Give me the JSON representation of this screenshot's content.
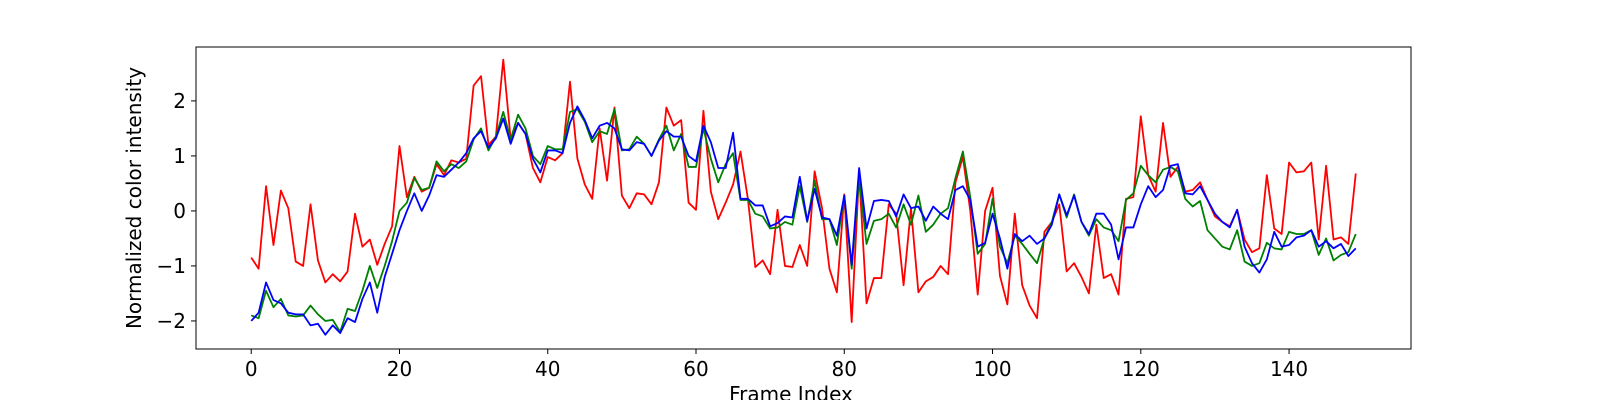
{
  "chart_data": {
    "type": "line",
    "x_label": "Frame Index",
    "y_label": "Normalized color intensity",
    "x": [
      0,
      1,
      2,
      3,
      4,
      5,
      6,
      7,
      8,
      9,
      10,
      11,
      12,
      13,
      14,
      15,
      16,
      17,
      18,
      19,
      20,
      21,
      22,
      23,
      24,
      25,
      26,
      27,
      28,
      29,
      30,
      31,
      32,
      33,
      34,
      35,
      36,
      37,
      38,
      39,
      40,
      41,
      42,
      43,
      44,
      45,
      46,
      47,
      48,
      49,
      50,
      51,
      52,
      53,
      54,
      55,
      56,
      57,
      58,
      59,
      60,
      61,
      62,
      63,
      64,
      65,
      66,
      67,
      68,
      69,
      70,
      71,
      72,
      73,
      74,
      75,
      76,
      77,
      78,
      79,
      80,
      81,
      82,
      83,
      84,
      85,
      86,
      87,
      88,
      89,
      90,
      91,
      92,
      93,
      94,
      95,
      96,
      97,
      98,
      99,
      100,
      101,
      102,
      103,
      104,
      105,
      106,
      107,
      108,
      109,
      110,
      111,
      112,
      113,
      114,
      115,
      116,
      117,
      118,
      119,
      120,
      121,
      122,
      123,
      124,
      125,
      126,
      127,
      128,
      129,
      130,
      131,
      132,
      133,
      134,
      135,
      136,
      137,
      138,
      139,
      140,
      141,
      142,
      143,
      144,
      145,
      146,
      147,
      148,
      149
    ],
    "series": [
      {
        "color": "#ff0000",
        "values": [
          -0.85,
          -1.05,
          0.45,
          -0.62,
          0.37,
          0.05,
          -0.92,
          -1.0,
          0.12,
          -0.9,
          -1.3,
          -1.15,
          -1.28,
          -1.1,
          -0.05,
          -0.65,
          -0.52,
          -0.98,
          -0.6,
          -0.28,
          1.18,
          0.25,
          0.62,
          0.35,
          0.42,
          0.85,
          0.65,
          0.92,
          0.88,
          0.95,
          2.28,
          2.45,
          1.2,
          1.35,
          2.75,
          1.3,
          1.6,
          1.4,
          0.78,
          0.52,
          0.98,
          0.92,
          1.05,
          2.35,
          0.95,
          0.48,
          0.22,
          1.5,
          0.55,
          1.88,
          0.28,
          0.05,
          0.32,
          0.3,
          0.12,
          0.52,
          1.88,
          1.55,
          1.65,
          0.15,
          0.02,
          1.82,
          0.35,
          -0.15,
          0.15,
          0.48,
          1.08,
          0.22,
          -1.02,
          -0.9,
          -1.15,
          0.02,
          -1.0,
          -1.02,
          -0.62,
          -1.0,
          0.72,
          0.05,
          -1.05,
          -1.48,
          0.3,
          -2.02,
          0.7,
          -1.68,
          -1.22,
          -1.22,
          0.12,
          -0.05,
          -1.35,
          0.05,
          -1.48,
          -1.28,
          -1.2,
          -1.0,
          -1.15,
          0.52,
          0.98,
          0.0,
          -1.52,
          0.0,
          0.42,
          -1.18,
          -1.7,
          -0.05,
          -1.35,
          -1.72,
          -1.95,
          -0.38,
          -0.2,
          0.12,
          -1.1,
          -0.95,
          -1.2,
          -1.5,
          -0.25,
          -1.22,
          -1.15,
          -1.52,
          0.22,
          0.25,
          1.72,
          0.65,
          0.35,
          1.6,
          0.62,
          0.8,
          0.35,
          0.38,
          0.52,
          0.2,
          -0.1,
          -0.2,
          -0.28,
          0.02,
          -0.52,
          -0.75,
          -0.68,
          0.65,
          -0.32,
          -0.42,
          0.88,
          0.7,
          0.72,
          0.88,
          -0.52,
          0.82,
          -0.52,
          -0.48,
          -0.6,
          0.68
        ]
      },
      {
        "color": "#008000",
        "values": [
          -1.9,
          -1.95,
          -1.45,
          -1.75,
          -1.6,
          -1.9,
          -1.92,
          -1.9,
          -1.72,
          -1.88,
          -2.0,
          -1.98,
          -2.2,
          -1.78,
          -1.82,
          -1.45,
          -1.0,
          -1.4,
          -1.0,
          -0.55,
          0.0,
          0.15,
          0.6,
          0.38,
          0.42,
          0.9,
          0.72,
          0.85,
          0.78,
          0.9,
          1.3,
          1.5,
          1.1,
          1.35,
          1.8,
          1.3,
          1.75,
          1.5,
          1.0,
          0.85,
          1.18,
          1.12,
          1.12,
          1.8,
          1.85,
          1.62,
          1.25,
          1.45,
          1.4,
          1.85,
          1.1,
          1.12,
          1.35,
          1.22,
          1.0,
          1.3,
          1.55,
          1.1,
          1.4,
          0.8,
          0.8,
          1.5,
          0.95,
          0.52,
          0.85,
          1.05,
          0.2,
          0.2,
          -0.05,
          -0.1,
          -0.32,
          -0.3,
          -0.2,
          -0.25,
          0.45,
          -0.2,
          0.55,
          -0.15,
          -0.15,
          -0.62,
          0.28,
          -1.05,
          0.6,
          -0.6,
          -0.18,
          -0.15,
          -0.05,
          -0.3,
          0.12,
          -0.25,
          0.28,
          -0.38,
          -0.25,
          -0.05,
          0.05,
          0.6,
          1.08,
          0.25,
          -0.78,
          -0.6,
          0.22,
          -0.65,
          -0.95,
          -0.45,
          -0.6,
          -0.78,
          -0.95,
          -0.5,
          -0.2,
          0.3,
          -0.12,
          0.3,
          -0.2,
          -0.45,
          -0.15,
          -0.3,
          -0.35,
          -0.55,
          0.2,
          0.32,
          0.82,
          0.65,
          0.52,
          0.75,
          0.8,
          0.72,
          0.22,
          0.08,
          0.18,
          -0.35,
          -0.5,
          -0.65,
          -0.7,
          -0.35,
          -0.92,
          -1.0,
          -0.95,
          -0.58,
          -0.68,
          -0.7,
          -0.38,
          -0.42,
          -0.42,
          -0.35,
          -0.8,
          -0.5,
          -0.9,
          -0.8,
          -0.75,
          -0.42
        ]
      },
      {
        "color": "#0000ff",
        "values": [
          -2.0,
          -1.85,
          -1.3,
          -1.62,
          -1.68,
          -1.85,
          -1.88,
          -1.88,
          -2.08,
          -2.05,
          -2.25,
          -2.08,
          -2.22,
          -1.95,
          -2.02,
          -1.6,
          -1.3,
          -1.85,
          -1.2,
          -0.78,
          -0.35,
          0.0,
          0.32,
          0.0,
          0.28,
          0.65,
          0.62,
          0.75,
          0.88,
          1.05,
          1.32,
          1.45,
          1.15,
          1.32,
          1.68,
          1.22,
          1.6,
          1.4,
          0.95,
          0.7,
          1.1,
          1.1,
          1.05,
          1.6,
          1.9,
          1.65,
          1.32,
          1.55,
          1.6,
          1.5,
          1.12,
          1.1,
          1.25,
          1.22,
          1.0,
          1.28,
          1.45,
          1.35,
          1.35,
          1.0,
          0.9,
          1.55,
          1.25,
          0.78,
          0.78,
          1.42,
          0.22,
          0.22,
          0.1,
          0.1,
          -0.28,
          -0.22,
          -0.1,
          -0.12,
          0.62,
          -0.18,
          0.4,
          -0.12,
          -0.15,
          -0.45,
          0.28,
          -0.98,
          0.78,
          -0.32,
          0.18,
          0.2,
          0.18,
          -0.1,
          0.3,
          0.05,
          0.08,
          -0.18,
          0.08,
          -0.05,
          -0.15,
          0.38,
          0.45,
          0.2,
          -0.65,
          -0.58,
          -0.05,
          -0.5,
          -1.05,
          -0.42,
          -0.55,
          -0.45,
          -0.6,
          -0.5,
          -0.25,
          0.3,
          -0.08,
          0.28,
          -0.2,
          -0.42,
          -0.05,
          -0.05,
          -0.25,
          -0.88,
          -0.3,
          -0.3,
          0.12,
          0.45,
          0.25,
          0.38,
          0.82,
          0.85,
          0.32,
          0.3,
          0.45,
          0.2,
          -0.05,
          -0.2,
          -0.3,
          0.02,
          -0.65,
          -0.95,
          -1.12,
          -0.88,
          -0.38,
          -0.65,
          -0.62,
          -0.48,
          -0.45,
          -0.35,
          -0.65,
          -0.55,
          -0.68,
          -0.6,
          -0.82,
          -0.68
        ]
      }
    ],
    "xlim": [
      -7.45,
      156.45
    ],
    "ylim": [
      -2.51,
      2.98
    ],
    "xticks": [
      0,
      20,
      40,
      60,
      80,
      100,
      120,
      140
    ],
    "yticks": [
      {
        "value": -2,
        "label": "−2"
      },
      {
        "value": -1,
        "label": "−1"
      },
      0,
      1,
      2
    ]
  }
}
